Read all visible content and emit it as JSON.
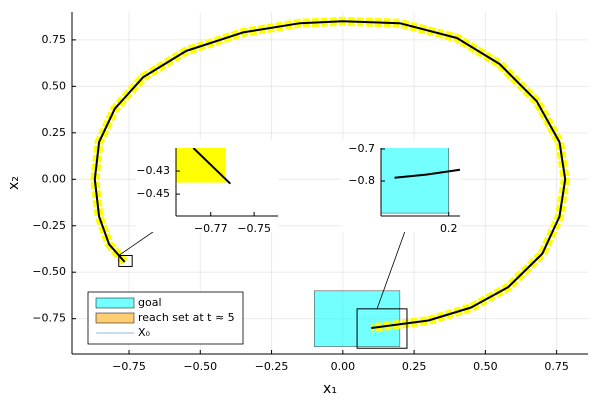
{
  "chart_data": {
    "type": "line",
    "xlabel": "x₁",
    "ylabel": "x₂",
    "xlim": [
      -0.95,
      0.86
    ],
    "ylim": [
      -0.94,
      0.9
    ],
    "xticks": [
      {
        "value": -0.75,
        "label": "−0.75"
      },
      {
        "value": -0.5,
        "label": "−0.50"
      },
      {
        "value": -0.25,
        "label": "−0.25"
      },
      {
        "value": 0,
        "label": "0.00"
      },
      {
        "value": 0.25,
        "label": "0.25"
      },
      {
        "value": 0.5,
        "label": "0.50"
      },
      {
        "value": 0.75,
        "label": "0.75"
      }
    ],
    "yticks": [
      {
        "value": -0.75,
        "label": "−0.75"
      },
      {
        "value": -0.5,
        "label": "−0.50"
      },
      {
        "value": -0.25,
        "label": "−0.25"
      },
      {
        "value": 0,
        "label": "0.00"
      },
      {
        "value": 0.25,
        "label": "0.25"
      },
      {
        "value": 0.5,
        "label": "0.50"
      },
      {
        "value": 0.75,
        "label": "0.75"
      }
    ],
    "grid": true,
    "legend": "bottom left",
    "series": [
      {
        "name": "goal",
        "color": "#00ffff"
      },
      {
        "name": "reach set at t ≈ 5",
        "color": "#ffa500"
      },
      {
        "name": "X₀",
        "color": "#8fb9e0"
      }
    ],
    "goal": {
      "color": "#00ffff",
      "x": [
        -0.1,
        0.2
      ],
      "y": [
        -0.9,
        -0.6
      ]
    },
    "trajectory": {
      "color": "#000000",
      "band_color": "#ffff00",
      "x": [
        -0.765,
        -0.82,
        -0.855,
        -0.87,
        -0.855,
        -0.8,
        -0.7,
        -0.55,
        -0.35,
        -0.15,
        0,
        0.2,
        0.4,
        0.55,
        0.68,
        0.76,
        0.78,
        0.76,
        0.7,
        0.58,
        0.45,
        0.3,
        0.2,
        0.1
      ],
      "y": [
        -0.445,
        -0.35,
        -0.2,
        0,
        0.2,
        0.38,
        0.55,
        0.69,
        0.79,
        0.84,
        0.85,
        0.84,
        0.76,
        0.62,
        0.42,
        0.2,
        0,
        -0.2,
        -0.4,
        -0.58,
        -0.69,
        -0.76,
        -0.78,
        -0.8
      ]
    },
    "insets": [
      {
        "xlim": [
          -0.786,
          -0.739
        ],
        "ylim": [
          -0.469,
          -0.41
        ],
        "xticks": [
          {
            "value": -0.77,
            "label": "−0.77"
          },
          {
            "value": -0.75,
            "label": "−0.75"
          }
        ],
        "yticks": [
          {
            "value": -0.43,
            "label": "−0.43"
          },
          {
            "value": -0.45,
            "label": "−0.45"
          }
        ],
        "reach": {
          "x": [
            -0.786,
            -0.763
          ],
          "y": [
            -0.44,
            -0.41
          ]
        },
        "line": {
          "x": [
            -0.778,
            -0.761
          ],
          "y": [
            -0.41,
            -0.441
          ]
        }
      },
      {
        "xlim": [
          0.05,
          0.225
        ],
        "ylim": [
          -0.909,
          -0.697
        ],
        "xticks": [
          0.2
        ],
        "yticks": [
          {
            "value": -0.7,
            "label": "−0.7"
          },
          {
            "value": -0.8,
            "label": "−0.8"
          }
        ],
        "line": {
          "x": [
            0.08,
            0.15,
            0.225
          ],
          "y": [
            -0.79,
            -0.78,
            -0.765
          ]
        }
      }
    ]
  }
}
